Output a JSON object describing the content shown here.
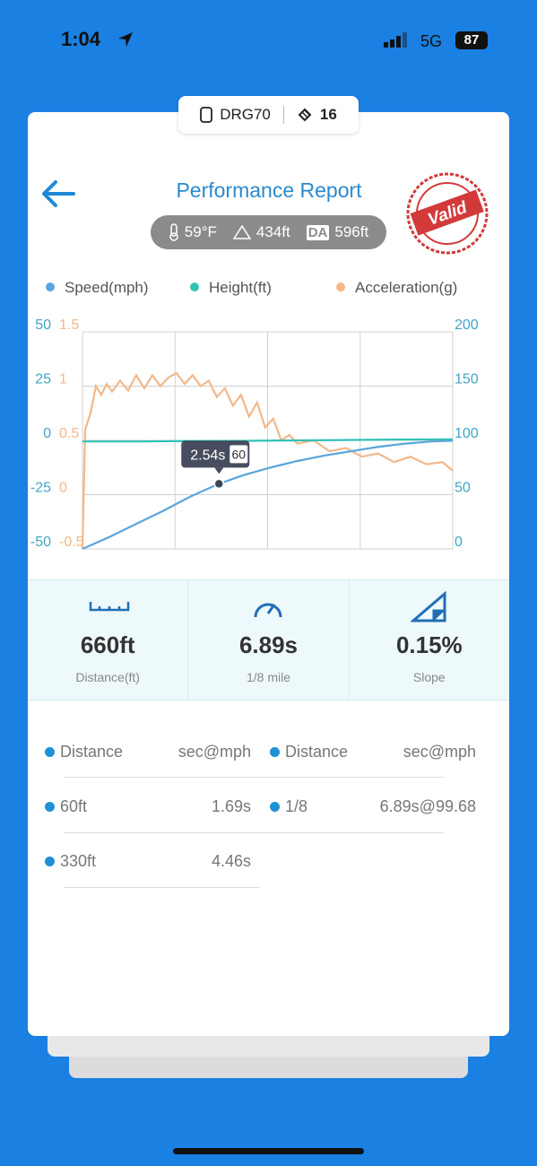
{
  "status_bar": {
    "time": "1:04",
    "network": "5G",
    "battery": "87"
  },
  "device": {
    "name": "DRG70",
    "count": "16"
  },
  "header": {
    "title": "Performance Report",
    "stamp": "Valid"
  },
  "conditions": {
    "temperature": "59°F",
    "altitude": "434ft",
    "da_badge": "DA",
    "density_altitude": "596ft"
  },
  "chart_data": {
    "type": "line",
    "xlim": [
      0,
      6.89
    ],
    "ylim": [
      -50,
      50
    ],
    "yticks": [
      -50,
      -25,
      0,
      25,
      50
    ],
    "y2lim": [
      0,
      200
    ],
    "y2ticks": [
      0,
      50,
      100,
      150,
      200
    ],
    "y3lim": [
      -0.5,
      1.5
    ],
    "y3ticks": [
      -0.5,
      0,
      0.5,
      1,
      1.5
    ],
    "grid": true,
    "series": [
      {
        "name": "Speed(mph)",
        "color": "#5aa6dc",
        "axis": "y2",
        "x": [
          0,
          0.5,
          1,
          1.5,
          2,
          2.54,
          3,
          3.5,
          4,
          4.5,
          5,
          5.5,
          6,
          6.5,
          6.89
        ],
        "values": [
          0,
          11,
          23,
          35,
          48,
          60,
          68,
          75,
          81,
          86,
          90,
          94,
          97,
          99,
          99.68
        ]
      },
      {
        "name": "Height(ft)",
        "color": "#33c0b8",
        "axis": "y",
        "x": [
          0,
          1,
          2,
          3,
          4,
          5,
          6,
          6.89
        ],
        "values": [
          -0.5,
          -0.5,
          -0.3,
          -0.2,
          0,
          0.2,
          0.4,
          0.5
        ]
      },
      {
        "name": "Acceleration(g)",
        "color": "#f2b88a",
        "axis": "y3",
        "x": [
          0,
          0.05,
          0.15,
          0.25,
          0.35,
          0.45,
          0.55,
          0.7,
          0.85,
          1,
          1.15,
          1.3,
          1.45,
          1.6,
          1.75,
          1.9,
          2.05,
          2.2,
          2.35,
          2.5,
          2.65,
          2.8,
          2.95,
          3.1,
          3.25,
          3.4,
          3.55,
          3.7,
          3.85,
          4,
          4.3,
          4.6,
          4.9,
          5.2,
          5.5,
          5.8,
          6.1,
          6.4,
          6.7,
          6.89
        ],
        "values": [
          -0.5,
          0.6,
          0.75,
          1,
          0.92,
          1.02,
          0.95,
          1.05,
          0.96,
          1.1,
          0.98,
          1.1,
          1,
          1.08,
          1.12,
          1.02,
          1.1,
          1,
          1.05,
          0.9,
          0.98,
          0.82,
          0.92,
          0.72,
          0.85,
          0.62,
          0.7,
          0.5,
          0.55,
          0.47,
          0.5,
          0.4,
          0.43,
          0.35,
          0.38,
          0.3,
          0.35,
          0.28,
          0.3,
          0.22
        ]
      }
    ],
    "annotation": {
      "x": 2.54,
      "x_label": "2.54s",
      "y": 60
    }
  },
  "stats": [
    {
      "value": "660ft",
      "label": "Distance(ft)"
    },
    {
      "value": "6.89s",
      "label": "1/8 mile"
    },
    {
      "value": "0.15%",
      "label": "Slope"
    }
  ],
  "results": {
    "columns": [
      "Distance",
      "sec@mph",
      "Distance",
      "sec@mph"
    ],
    "rows": [
      [
        "60ft",
        "1.69s",
        "1/8",
        "6.89s@99.68"
      ],
      [
        "330ft",
        "4.46s"
      ]
    ]
  }
}
